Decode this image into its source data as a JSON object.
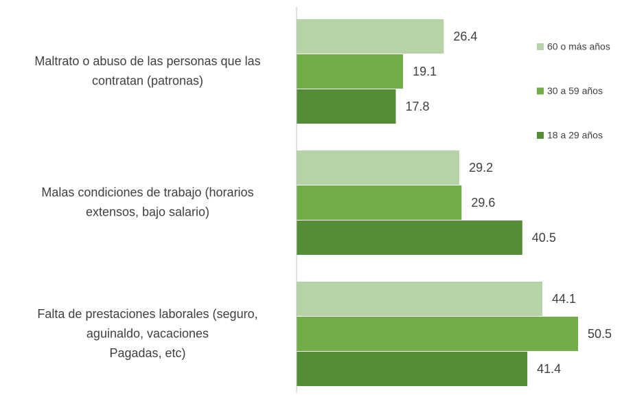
{
  "chart_data": {
    "type": "bar",
    "orientation": "horizontal",
    "categories": [
      [
        "Maltrato o abuso de las personas que las",
        "contratan (patronas)"
      ],
      [
        "Malas condiciones de trabajo (horarios",
        "extensos, bajo salario)"
      ],
      [
        "Falta de prestaciones laborales (seguro,",
        "aguinaldo, vacaciones",
        "Pagadas, etc)"
      ]
    ],
    "series": [
      {
        "name": "60 o más años",
        "color": "#b5d3a4",
        "values": [
          26.4,
          29.2,
          44.1
        ]
      },
      {
        "name": "30 a 59 años",
        "color": "#70ad47",
        "values": [
          19.1,
          29.6,
          50.5
        ]
      },
      {
        "name": "18 a 29 años",
        "color": "#548d38",
        "values": [
          17.8,
          40.5,
          41.4
        ]
      }
    ],
    "legend": "right"
  }
}
